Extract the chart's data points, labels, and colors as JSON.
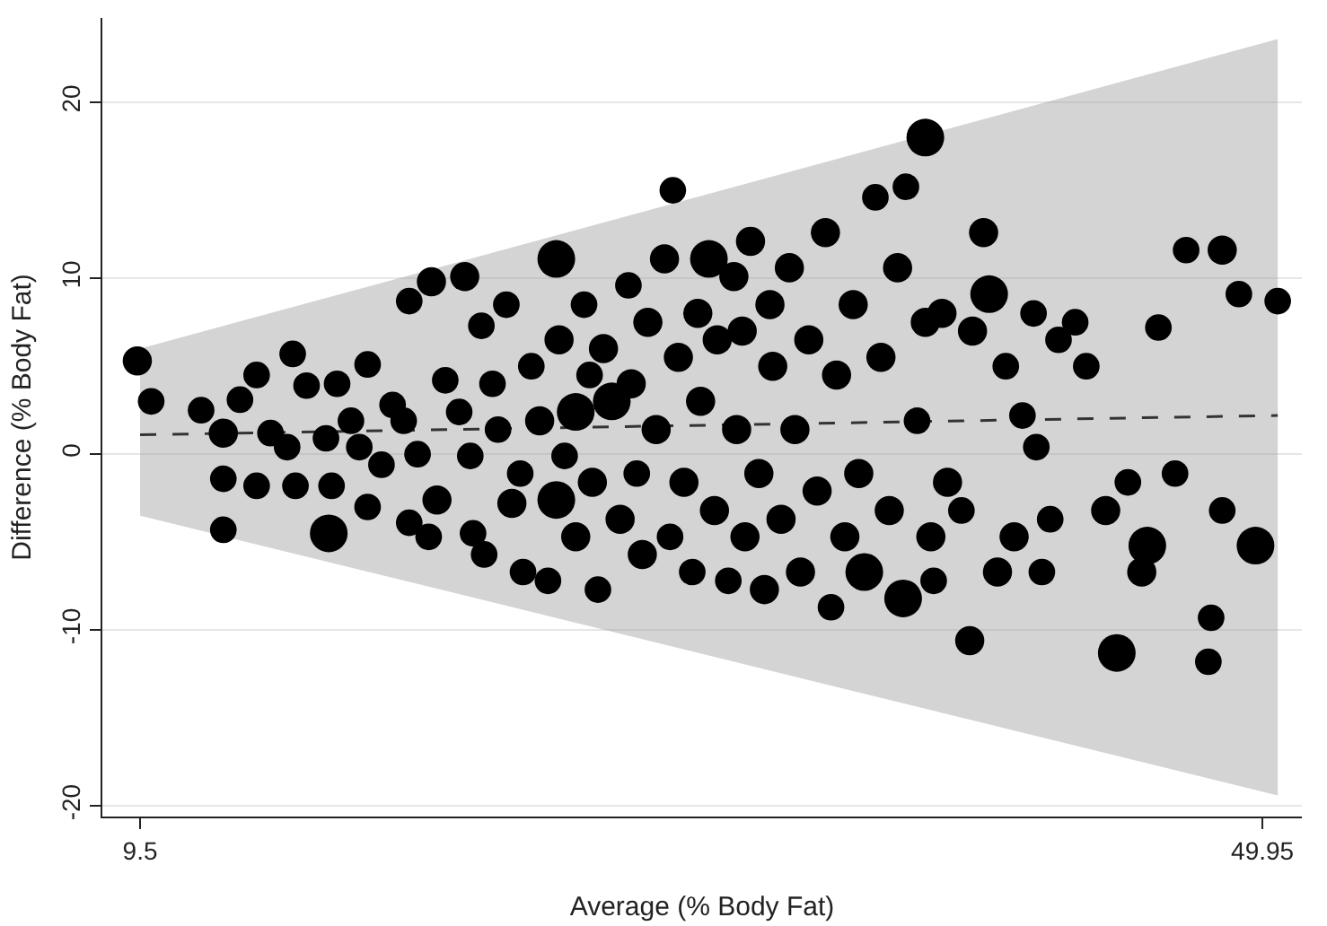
{
  "chart_data": {
    "type": "bubble",
    "xlabel": "Average (% Body Fat)",
    "ylabel": "Difference (% Body Fat)",
    "xlim": [
      8.14,
      51.37
    ],
    "ylim": [
      -20.6,
      24.8
    ],
    "xticks": [
      9.5,
      49.95
    ],
    "yticks": [
      -20,
      -10,
      0,
      10,
      20
    ],
    "grid": "y",
    "relative": false,
    "series": [
      {
        "type": "line",
        "color": "#333333",
        "line_style": "dashed",
        "marker": "none",
        "x": [
          9.5,
          50.5
        ],
        "values": [
          1.1,
          2.2
        ],
        "lower": [
          -3.5,
          -19.4
        ],
        "upper": [
          6.0,
          23.6
        ]
      },
      {
        "type": "bubble",
        "color": "#000000",
        "marker": "circle",
        "x": [
          9.4,
          9.9,
          11.7,
          12.5,
          12.5,
          12.5,
          13.1,
          13.7,
          13.7,
          14.2,
          14.8,
          15.0,
          15.1,
          15.5,
          16.2,
          16.3,
          16.4,
          16.6,
          17.1,
          17.4,
          17.7,
          17.7,
          18.2,
          18.6,
          19.0,
          19.2,
          19.2,
          20.0,
          19.5,
          19.9,
          20.2,
          20.5,
          21.0,
          21.2,
          21.4,
          21.5,
          21.8,
          21.9,
          22.2,
          22.4,
          22.7,
          22.9,
          23.2,
          23.3,
          23.6,
          23.9,
          24.2,
          24.5,
          24.5,
          24.6,
          24.8,
          25.2,
          25.2,
          25.5,
          25.7,
          25.8,
          26.0,
          26.2,
          26.5,
          26.8,
          27.1,
          27.2,
          27.4,
          27.6,
          27.8,
          28.1,
          28.4,
          28.6,
          28.7,
          28.9,
          29.1,
          29.4,
          29.6,
          29.7,
          30.0,
          30.2,
          30.3,
          30.7,
          30.9,
          31.0,
          31.2,
          31.3,
          31.5,
          31.8,
          32.0,
          32.2,
          32.3,
          32.6,
          32.9,
          33.1,
          33.3,
          33.6,
          33.9,
          34.2,
          34.4,
          34.6,
          34.9,
          35.2,
          35.4,
          35.6,
          36.0,
          36.2,
          36.5,
          36.8,
          37.0,
          37.1,
          37.5,
          37.8,
          37.8,
          38.0,
          38.1,
          38.4,
          38.6,
          39.1,
          39.4,
          39.5,
          39.9,
          40.1,
          40.4,
          40.7,
          41.0,
          41.3,
          41.7,
          41.8,
          42.0,
          42.3,
          42.6,
          43.2,
          43.6,
          44.3,
          44.7,
          45.1,
          45.6,
          45.8,
          46.2,
          46.8,
          47.2,
          48.0,
          48.1,
          48.5,
          48.5,
          49.1,
          49.7,
          50.5
        ],
        "values": [
          5.3,
          3.0,
          2.5,
          1.2,
          -1.4,
          -4.3,
          3.1,
          4.5,
          -1.8,
          1.2,
          0.4,
          5.7,
          -1.8,
          3.9,
          0.9,
          -4.5,
          -1.8,
          4.0,
          1.9,
          0.4,
          5.1,
          -3.0,
          -0.6,
          2.8,
          1.9,
          -3.9,
          8.7,
          9.8,
          0,
          -4.7,
          -2.6,
          4.2,
          2.4,
          10.1,
          -0.1,
          -4.5,
          7.3,
          -5.7,
          4.0,
          1.4,
          8.5,
          -2.8,
          -1.1,
          -6.7,
          5.0,
          1.9,
          -7.2,
          11.1,
          -2.6,
          6.5,
          -0.1,
          2.4,
          -4.7,
          8.5,
          4.5,
          -1.6,
          -7.7,
          6.0,
          3.0,
          -3.7,
          9.6,
          4.0,
          -1.1,
          -5.7,
          7.5,
          1.4,
          11.1,
          -4.7,
          15.0,
          5.5,
          -1.6,
          -6.7,
          8.0,
          3.0,
          11.1,
          -3.2,
          6.5,
          -7.2,
          10.1,
          1.4,
          7.0,
          -4.7,
          12.1,
          -1.1,
          -7.7,
          8.5,
          5.0,
          -3.7,
          10.6,
          1.4,
          -6.7,
          6.5,
          -2.1,
          12.6,
          -8.7,
          4.5,
          -4.7,
          8.5,
          -1.1,
          -6.7,
          14.6,
          5.5,
          -3.2,
          10.6,
          -8.2,
          15.2,
          1.9,
          18.0,
          7.5,
          -4.7,
          -7.2,
          8.0,
          -1.6,
          -3.2,
          -10.6,
          7.0,
          12.6,
          9.1,
          -6.7,
          5.0,
          -4.7,
          2.2,
          8.0,
          0.4,
          -6.7,
          -3.7,
          6.5,
          7.5,
          5.0,
          -3.2,
          -11.3,
          -1.6,
          -6.7,
          -5.2,
          7.2,
          -1.1,
          11.6,
          -11.8,
          -9.3,
          -3.2,
          11.6,
          9.1,
          -5.2,
          8.7
        ],
        "sizes": [
          0.6,
          0.5,
          0.5,
          0.6,
          0.5,
          0.5,
          0.5,
          0.5,
          0.5,
          0.5,
          0.5,
          0.5,
          0.5,
          0.5,
          0.5,
          1,
          0.5,
          0.5,
          0.5,
          0.5,
          0.5,
          0.5,
          0.5,
          0.5,
          0.5,
          0.5,
          0.5,
          0.6,
          0.5,
          0.5,
          0.6,
          0.5,
          0.5,
          0.6,
          0.5,
          0.5,
          0.5,
          0.5,
          0.5,
          0.5,
          0.5,
          0.6,
          0.5,
          0.5,
          0.5,
          0.6,
          0.5,
          1,
          1,
          0.6,
          0.5,
          1,
          0.6,
          0.5,
          0.5,
          0.6,
          0.5,
          0.6,
          1,
          0.6,
          0.5,
          0.6,
          0.5,
          0.6,
          0.6,
          0.6,
          0.6,
          0.5,
          0.5,
          0.6,
          0.6,
          0.5,
          0.6,
          0.6,
          1,
          0.6,
          0.6,
          0.5,
          0.6,
          0.6,
          0.6,
          0.6,
          0.6,
          0.6,
          0.6,
          0.6,
          0.6,
          0.6,
          0.6,
          0.6,
          0.6,
          0.6,
          0.6,
          0.6,
          0.5,
          0.6,
          0.6,
          0.6,
          0.6,
          1,
          0.5,
          0.6,
          0.6,
          0.6,
          1,
          0.5,
          0.5,
          1,
          0.6,
          0.6,
          0.5,
          0.6,
          0.6,
          0.5,
          0.6,
          0.6,
          0.6,
          1,
          0.6,
          0.5,
          0.6,
          0.5,
          0.5,
          0.5,
          0.5,
          0.5,
          0.5,
          0.5,
          0.5,
          0.6,
          1,
          0.5,
          0.6,
          1,
          0.5,
          0.5,
          0.5,
          0.5,
          0.5,
          0.5,
          0.6,
          0.5,
          1,
          0.5
        ]
      }
    ]
  }
}
